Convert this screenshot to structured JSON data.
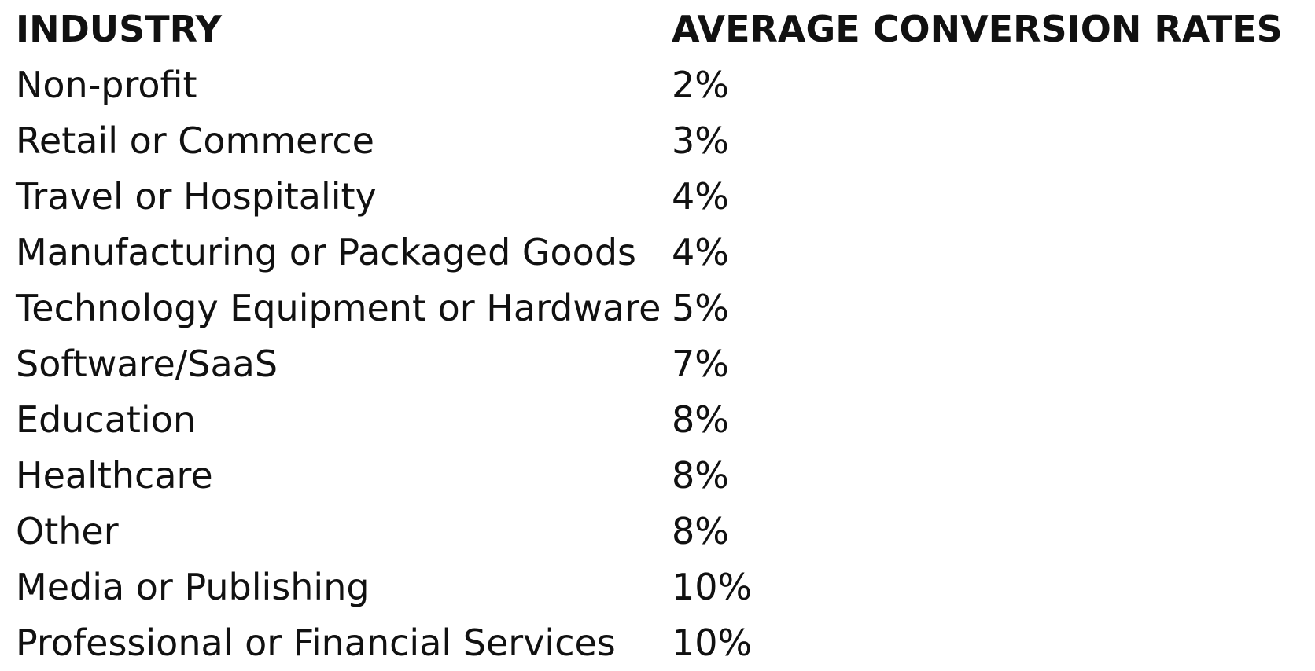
{
  "table": {
    "header": [
      "INDUSTRY",
      "AVERAGE CONVERSION RATES"
    ],
    "rows": [
      [
        "Non-profit",
        "2%"
      ],
      [
        "Retail or Commerce",
        "3%"
      ],
      [
        "Travel or Hospitality",
        "4%"
      ],
      [
        "Manufacturing or Packaged Goods",
        "4%"
      ],
      [
        "Technology Equipment or Hardware",
        "5%"
      ],
      [
        "Software/SaaS",
        "7%"
      ],
      [
        "Education",
        "8%"
      ],
      [
        "Healthcare",
        "8%"
      ],
      [
        "Other",
        "8%"
      ],
      [
        "Media or Publishing",
        "10%"
      ],
      [
        "Professional or Financial Services",
        "10%"
      ]
    ]
  }
}
